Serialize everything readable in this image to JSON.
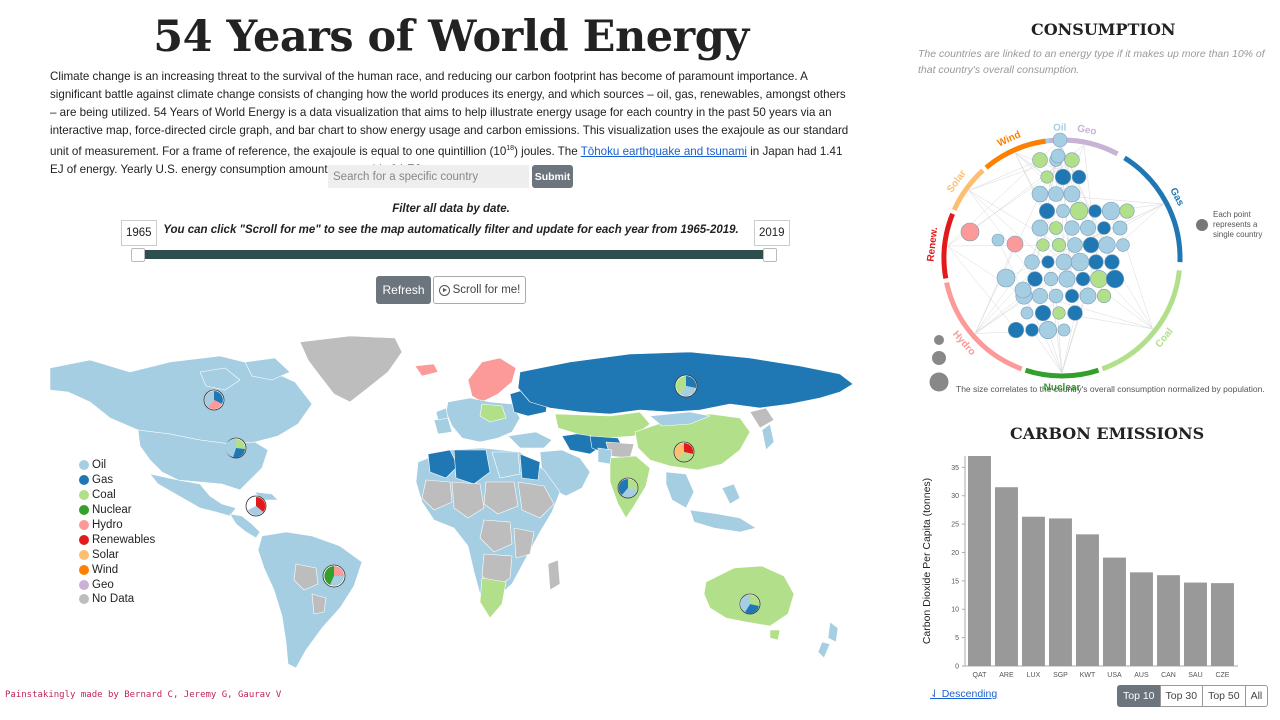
{
  "header": {
    "title": "54 Years of World Energy",
    "intro_1": "Climate change is an increasing threat to the survival of the human race, and reducing our carbon footprint has become of paramount importance. A significant battle against climate change consists of changing how the world produces its energy, and which sources – oil, gas, renewables, amongst others – are being utilized. 54 Years of World Energy is a data visualization that aims to help illustrate energy usage for each country in the past 50 years via an interactive map, force-directed circle graph, and bar chart to show energy usage and carbon emissions. This visualization uses the exajoule as our standard unit of measurement. For a frame of reference, the exajoule is equal to one quintillion (10",
    "intro_sup": "18",
    "intro_2": ") joules. The ",
    "intro_link": "Tōhoku earthquake and tsunami",
    "intro_3": " in Japan had 1.41 EJ of energy. Yearly U.S. energy consumption amounts to roughly 94 EJ."
  },
  "search": {
    "placeholder": "Search for a specific country",
    "submit_label": "Submit"
  },
  "filter": {
    "title": "Filter all data by date.",
    "subtitle": "You can click \"Scroll for me\" to see the map automatically filter and update for each year from 1965-2019.",
    "start_year": "1965",
    "end_year": "2019"
  },
  "controls": {
    "refresh_label": "Refresh",
    "scroll_label": "Scroll for me!"
  },
  "legend": [
    {
      "label": "Oil",
      "color": "#a6cee3"
    },
    {
      "label": "Gas",
      "color": "#1f78b4"
    },
    {
      "label": "Coal",
      "color": "#b2df8a"
    },
    {
      "label": "Nuclear",
      "color": "#33a02c"
    },
    {
      "label": "Hydro",
      "color": "#fb9a99"
    },
    {
      "label": "Renewables",
      "color": "#e31a1c"
    },
    {
      "label": "Solar",
      "color": "#fdbf6f"
    },
    {
      "label": "Wind",
      "color": "#ff7f00"
    },
    {
      "label": "Geo",
      "color": "#cab2d6"
    },
    {
      "label": "No Data",
      "color": "#bdbdbd"
    }
  ],
  "consumption": {
    "title": "CONSUMPTION",
    "subtitle": "The countries are linked to an energy type if it makes up more than 10% of that country's overall consumption.",
    "arc_labels": [
      "Oil",
      "Gas",
      "Coal",
      "Nuclear",
      "Hydro",
      "Renew.",
      "Solar",
      "Wind",
      "Geo"
    ],
    "point_note": "Each point represents a single country",
    "size_note": "The size correlates to the country's overall consumption normalized by population."
  },
  "carbon": {
    "title": "CARBON EMISSIONS",
    "sort_label": "Descending",
    "buttons": [
      "Top 10",
      "Top 30",
      "Top 50",
      "All"
    ],
    "active_button": "Top 10"
  },
  "chart_data": {
    "type": "bar",
    "title": "CARBON EMISSIONS",
    "ylabel": "Carbon Dioxide Per Capita (tonnes)",
    "xlabel": "",
    "categories": [
      "QAT",
      "ARE",
      "LUX",
      "SGP",
      "KWT",
      "USA",
      "AUS",
      "CAN",
      "SAU",
      "CZE"
    ],
    "values": [
      37,
      31.5,
      26.3,
      26,
      23.2,
      19.1,
      16.5,
      16,
      14.7,
      14.6
    ],
    "ylim": [
      0,
      37
    ],
    "yticks": [
      0,
      5,
      10,
      15,
      20,
      25,
      30,
      35
    ],
    "color": "#999999"
  },
  "credit": "Painstakingly made by Bernard C, Jeremy G, Gaurav V"
}
